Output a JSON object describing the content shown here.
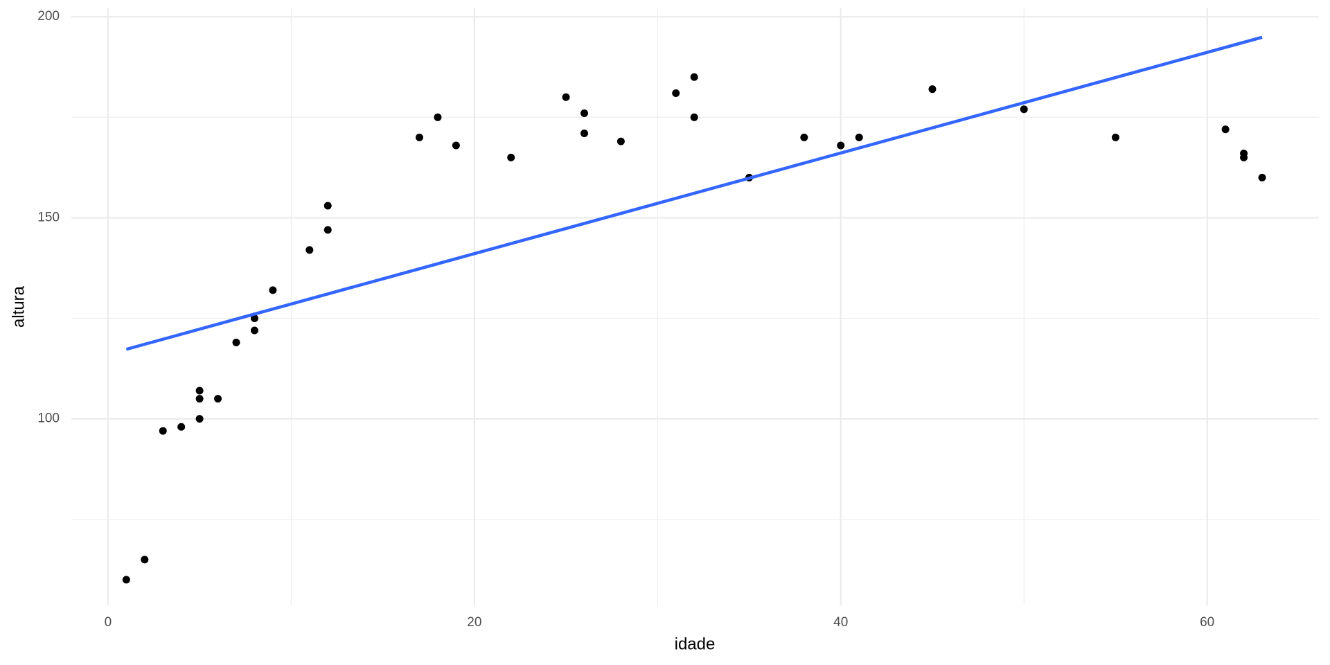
{
  "chart_data": {
    "type": "scatter",
    "x_label": "idade",
    "y_label": "altura",
    "x": [
      1,
      2,
      3,
      4,
      5,
      5,
      5,
      6,
      7,
      8,
      8,
      9,
      11,
      12,
      12,
      17,
      18,
      19,
      22,
      25,
      26,
      26,
      28,
      31,
      32,
      32,
      35,
      38,
      40,
      41,
      45,
      50,
      55,
      61,
      62,
      62,
      63
    ],
    "values": [
      60,
      65,
      97,
      98,
      107,
      105,
      100,
      105,
      119,
      125,
      122,
      132,
      142,
      153,
      147,
      170,
      175,
      168,
      165,
      180,
      176,
      171,
      169,
      181,
      185,
      175,
      160,
      170,
      168,
      170,
      182,
      177,
      170,
      172,
      166,
      165,
      160
    ],
    "color": "#000000",
    "fit": {
      "x": [
        1,
        63
      ],
      "values": [
        117.3,
        194.9
      ],
      "color": "#3366ff"
    },
    "xlim": [
      -2,
      66.1
    ],
    "ylim": [
      53.6,
      202.1
    ],
    "xticks": [
      0,
      20,
      40,
      60
    ],
    "yticks": [
      100,
      150,
      200
    ],
    "grid": true
  }
}
